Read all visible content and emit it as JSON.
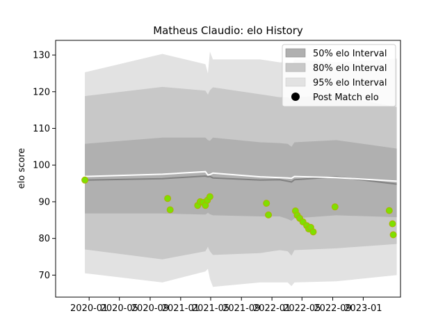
{
  "chart_data": {
    "type": "scatter",
    "title": "Matheus Claudio: elo History",
    "xlabel": "",
    "ylabel": "elo score",
    "xlim": [
      "2019-08-20",
      "2023-05-30"
    ],
    "ylim": [
      64,
      134
    ],
    "x_ticks": [
      "2020-01",
      "2020-05",
      "2020-09",
      "2021-01",
      "2021-05",
      "2021-09",
      "2022-01",
      "2022-05",
      "2022-09",
      "2023-01"
    ],
    "y_ticks": [
      70,
      80,
      90,
      100,
      110,
      120,
      130
    ],
    "legend": {
      "position": "top-right",
      "entries": [
        "50% elo Interval",
        "80% elo Interval",
        "95% elo Interval",
        "Post Match elo"
      ]
    },
    "colors": {
      "band_50": "#b0b0b0",
      "band_80": "#c8c8c8",
      "band_95": "#e2e2e2",
      "median_line": "#808080",
      "mean_line": "#ffffff",
      "point_fill": "#7ee000",
      "point_edge": "#b0b000"
    },
    "interval_x": [
      "2019-12-15",
      "2020-10-20",
      "2021-04-10",
      "2021-04-20",
      "2021-04-28",
      "2021-05-10",
      "2021-11-15",
      "2022-02-01",
      "2022-03-05",
      "2022-03-20",
      "2022-04-01",
      "2022-09-15",
      "2023-05-15"
    ],
    "band_95": {
      "upper": [
        125.3,
        130.3,
        127.5,
        125.0,
        130.9,
        128.8,
        128.8,
        128.0,
        128.0,
        127.0,
        128.8,
        128.0,
        129.0
      ],
      "lower": [
        70.5,
        68.0,
        71.0,
        71.7,
        69.0,
        66.8,
        68.0,
        68.0,
        68.0,
        67.0,
        68.0,
        68.3,
        70.0
      ]
    },
    "band_80": {
      "upper": [
        118.8,
        121.3,
        120.3,
        119.2,
        120.4,
        121.2,
        119.3,
        118.5,
        118.5,
        117.8,
        118.5,
        119.0,
        115.8
      ]
    },
    "band_80_lower": [
      77.0,
      74.3,
      76.5,
      77.7,
      76.5,
      75.5,
      76.0,
      76.8,
      76.5,
      75.3,
      76.8,
      77.3,
      78.5
    ],
    "band_50_upper": [
      105.8,
      107.5,
      107.5,
      106.8,
      106.6,
      107.5,
      106.2,
      106.0,
      105.8,
      105.0,
      106.2,
      106.8,
      104.5
    ],
    "band_50_lower": [
      86.8,
      86.8,
      86.5,
      87.0,
      86.6,
      86.3,
      86.0,
      86.0,
      85.3,
      84.8,
      85.5,
      86.3,
      85.8
    ],
    "median": [
      95.9,
      96.3,
      97.0,
      96.8,
      96.9,
      96.5,
      95.9,
      96.0,
      95.6,
      95.4,
      96.0,
      96.8,
      94.8
    ],
    "mean": [
      96.9,
      97.5,
      98.2,
      97.3,
      97.4,
      97.8,
      96.8,
      96.6,
      96.5,
      96.4,
      96.9,
      96.6,
      95.6
    ],
    "points": [
      {
        "x": "2019-12-15",
        "y": 95.9
      },
      {
        "x": "2020-11-10",
        "y": 90.9
      },
      {
        "x": "2020-11-20",
        "y": 87.8
      },
      {
        "x": "2021-03-10",
        "y": 89.0
      },
      {
        "x": "2021-03-20",
        "y": 90.0
      },
      {
        "x": "2021-04-01",
        "y": 89.8
      },
      {
        "x": "2021-04-10",
        "y": 89.0
      },
      {
        "x": "2021-04-18",
        "y": 90.4
      },
      {
        "x": "2021-04-28",
        "y": 91.4
      },
      {
        "x": "2021-12-10",
        "y": 89.6
      },
      {
        "x": "2021-12-18",
        "y": 86.4
      },
      {
        "x": "2022-04-05",
        "y": 87.5
      },
      {
        "x": "2022-04-12",
        "y": 86.3
      },
      {
        "x": "2022-04-22",
        "y": 85.5
      },
      {
        "x": "2022-05-05",
        "y": 84.5
      },
      {
        "x": "2022-05-20",
        "y": 83.5
      },
      {
        "x": "2022-05-28",
        "y": 82.6
      },
      {
        "x": "2022-06-05",
        "y": 83.0
      },
      {
        "x": "2022-06-15",
        "y": 81.8
      },
      {
        "x": "2022-09-10",
        "y": 88.6
      },
      {
        "x": "2023-04-15",
        "y": 87.6
      },
      {
        "x": "2023-04-28",
        "y": 84.0
      },
      {
        "x": "2023-05-01",
        "y": 81.0
      }
    ]
  }
}
